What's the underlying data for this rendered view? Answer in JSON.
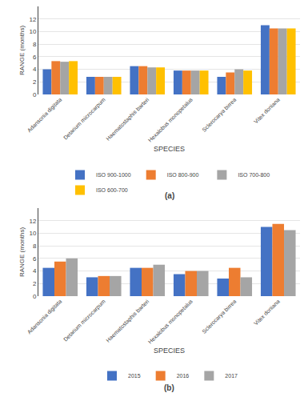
{
  "chart_data": [
    {
      "type": "bar",
      "title": "(a)",
      "xlabel": "SPECIES",
      "ylabel": "RANGE (months)",
      "categories": [
        "Adansonia digitata",
        "Detarium microcarpum",
        "Haematostaphis barteri",
        "Hexalobus monopetalus",
        "Sclerocarya birrea",
        "Vitex doniana"
      ],
      "series": [
        {
          "name": "ISO 900-1000",
          "color": "#4472C4",
          "values": [
            4.0,
            2.8,
            4.5,
            3.8,
            2.8,
            11.0
          ]
        },
        {
          "name": "ISO 800-900",
          "color": "#ED7D31",
          "values": [
            5.3,
            2.8,
            4.5,
            3.8,
            3.5,
            10.5
          ]
        },
        {
          "name": "ISO 700-800",
          "color": "#A5A5A5",
          "values": [
            5.2,
            2.8,
            4.3,
            3.8,
            4.0,
            10.5
          ]
        },
        {
          "name": "ISO 600-700",
          "color": "#FFC000",
          "values": [
            5.3,
            2.8,
            4.3,
            3.8,
            3.8,
            10.5
          ]
        }
      ],
      "ylim": [
        0,
        14
      ],
      "yticks": [
        0,
        2,
        4,
        6,
        8,
        10,
        12
      ],
      "grid": true,
      "legend": "bottom"
    },
    {
      "type": "bar",
      "title": "(b)",
      "xlabel": "SPECIES",
      "ylabel": "RANGE (months)",
      "categories": [
        "Adansonia digitata",
        "Detarium microcarpum",
        "Haematostaphis barteri",
        "Hexalobus monopetalus",
        "Sclerocarya birrea",
        "Vitex doniana"
      ],
      "series": [
        {
          "name": "2015",
          "color": "#4472C4",
          "values": [
            4.5,
            3.0,
            4.5,
            3.5,
            2.8,
            11.0
          ]
        },
        {
          "name": "2016",
          "color": "#ED7D31",
          "values": [
            5.5,
            3.2,
            4.5,
            4.0,
            4.5,
            11.5
          ]
        },
        {
          "name": "2017",
          "color": "#A5A5A5",
          "values": [
            6.0,
            3.2,
            5.0,
            4.0,
            3.0,
            10.5
          ]
        }
      ],
      "ylim": [
        0,
        14
      ],
      "yticks": [
        0,
        2,
        4,
        6,
        8,
        10,
        12
      ],
      "grid": true,
      "legend": "bottom"
    }
  ]
}
